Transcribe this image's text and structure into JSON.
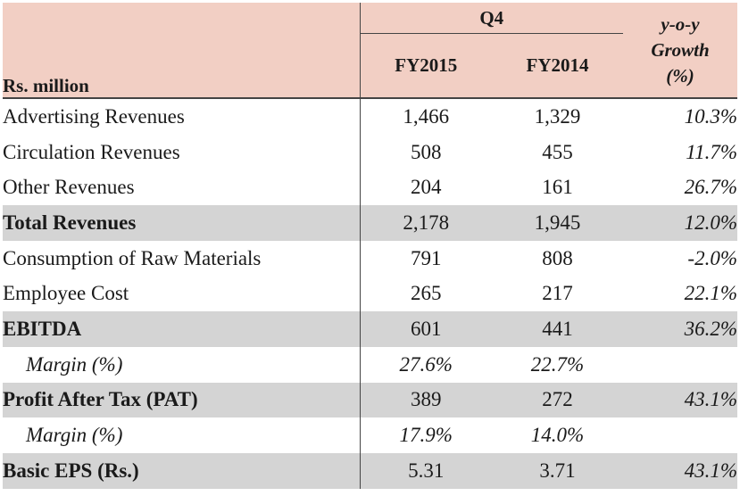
{
  "header": {
    "row_label": "Rs. million",
    "period": "Q4",
    "growth": [
      "y-o-y",
      "Growth",
      "(%)"
    ],
    "col1": "FY2015",
    "col2": "FY2014"
  },
  "rows": [
    {
      "label": "Advertising Revenues",
      "fy2015": "1,466",
      "fy2014": "1,329",
      "growth": "10.3%"
    },
    {
      "label": "Circulation Revenues",
      "fy2015": "508",
      "fy2014": "455",
      "growth": "11.7%"
    },
    {
      "label": "Other Revenues",
      "fy2015": "204",
      "fy2014": "161",
      "growth": "26.7%"
    },
    {
      "label": "Total Revenues",
      "fy2015": "2,178",
      "fy2014": "1,945",
      "growth": "12.0%"
    },
    {
      "label": "Consumption of Raw Materials",
      "fy2015": "791",
      "fy2014": "808",
      "growth": "-2.0%"
    },
    {
      "label": "Employee Cost",
      "fy2015": "265",
      "fy2014": "217",
      "growth": "22.1%"
    },
    {
      "label": "EBITDA",
      "fy2015": "601",
      "fy2014": "441",
      "growth": "36.2%"
    },
    {
      "label": "Margin (%)",
      "fy2015": "27.6%",
      "fy2014": "22.7%",
      "growth": ""
    },
    {
      "label": "Profit After Tax (PAT)",
      "fy2015": "389",
      "fy2014": "272",
      "growth": "43.1%"
    },
    {
      "label": "Margin (%)",
      "fy2015": "17.9%",
      "fy2014": "14.0%",
      "growth": ""
    },
    {
      "label": "Basic EPS (Rs.)",
      "fy2015": "5.31",
      "fy2014": "3.71",
      "growth": "43.1%"
    }
  ]
}
